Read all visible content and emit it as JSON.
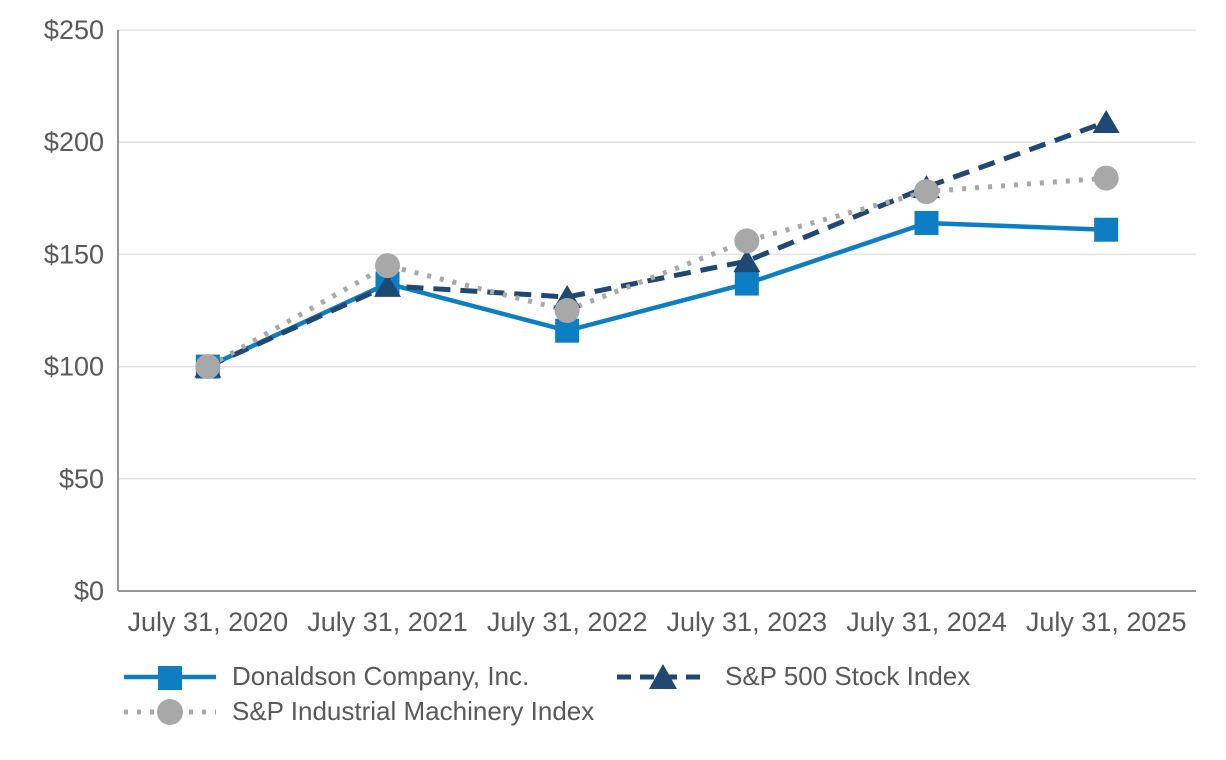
{
  "chart_data": {
    "type": "line",
    "title": "",
    "xlabel": "",
    "ylabel": "",
    "x_labels": [
      "July 31, 2020",
      "July 31, 2021",
      "July 31, 2022",
      "July 31, 2023",
      "July 31, 2024",
      "July 31, 2025"
    ],
    "y_tick_labels": [
      "$0",
      "$50",
      "$100",
      "$150",
      "$200",
      "$250"
    ],
    "ylim": [
      0,
      250
    ],
    "ytick_step": 50,
    "grid": true,
    "legend_position": "bottom-left",
    "series": [
      {
        "name": "Donaldson Company, Inc.",
        "values": [
          100,
          137,
          116,
          137,
          164,
          161
        ],
        "color": "#0D7EC2",
        "marker": "square",
        "line_style": "solid"
      },
      {
        "name": "S&P 500 Stock Index",
        "values": [
          100,
          136,
          131,
          147,
          180,
          209
        ],
        "color": "#1F4872",
        "marker": "triangle",
        "line_style": "dashed"
      },
      {
        "name": "S&P Industrial Machinery Index",
        "values": [
          100,
          145,
          125,
          156,
          178,
          184
        ],
        "color": "#A8A8A8",
        "marker": "circle",
        "line_style": "dotted"
      }
    ]
  },
  "style": {
    "background": "#FFFFFF",
    "grid_color": "#E3E3E3",
    "axis_color": "#969696",
    "tick_label_color": "#595959"
  }
}
